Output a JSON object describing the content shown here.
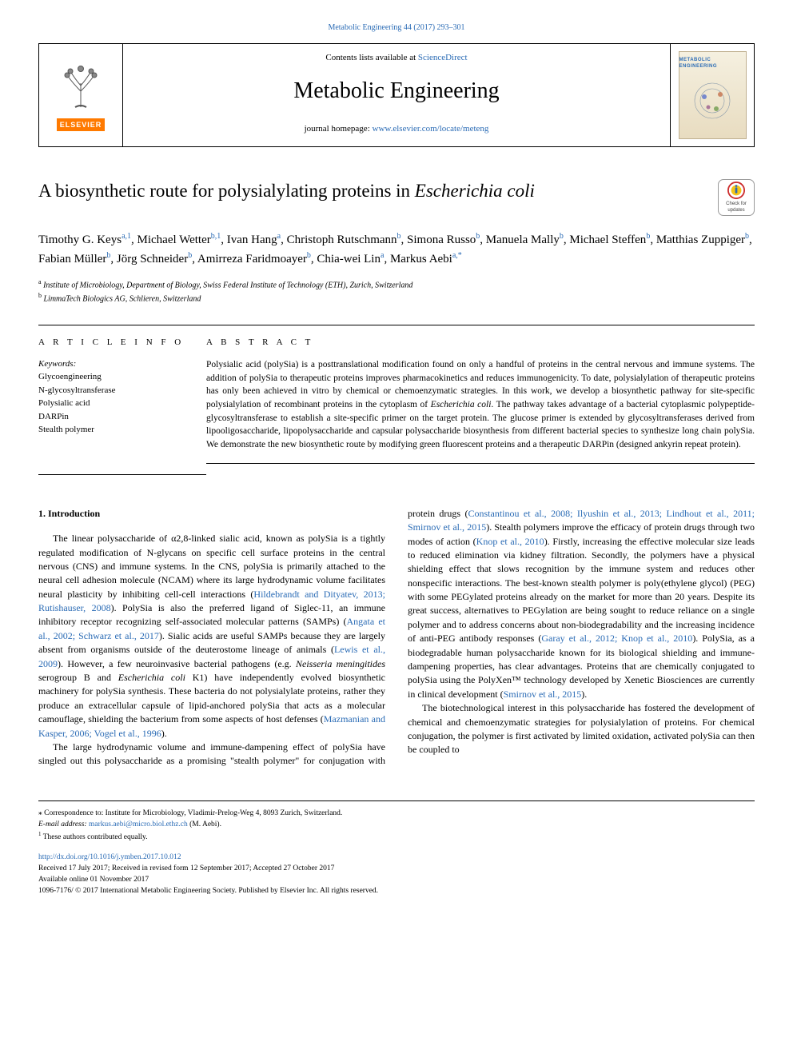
{
  "top_citation": "Metabolic Engineering 44 (2017) 293–301",
  "header": {
    "contents_prefix": "Contents lists available at ",
    "contents_link": "ScienceDirect",
    "journal_name": "Metabolic Engineering",
    "homepage_label": "journal homepage: ",
    "homepage_url": "www.elsevier.com/locate/meteng",
    "elsevier_label": "ELSEVIER",
    "cover_label": "METABOLIC ENGINEERING"
  },
  "colors": {
    "link": "#2a6bb5",
    "text": "#000000",
    "crossmark_red": "#cc2b2b",
    "crossmark_yellow": "#f5c518",
    "crossmark_blue": "#2a6bb5",
    "elsevier_orange": "#ff7a00",
    "cover_bg_top": "#f5f0e0",
    "cover_bg_bot": "#e8dcc0"
  },
  "crossmark": {
    "line1": "Check for",
    "line2": "updates"
  },
  "article": {
    "title_pre": "A biosynthetic route for polysialylating proteins in ",
    "title_italic": "Escherichia coli",
    "authors_html": "Timothy G. Keys|a,1|, Michael Wetter|b,1|, Ivan Hang|a|, Christoph Rutschmann|b|, Simona Russo|b|, Manuela Mally|b|, Michael Steffen|b|, Matthias Zuppiger|b|, Fabian Müller|b|, Jörg Schneider|b|, Amirreza Faridmoayer|b|, Chia-wei Lin|a|, Markus Aebi|a,*|",
    "affiliations": [
      {
        "sup": "a",
        "text": "Institute of Microbiology, Department of Biology, Swiss Federal Institute of Technology (ETH), Zurich, Switzerland"
      },
      {
        "sup": "b",
        "text": "LimmaTech Biologics AG, Schlieren, Switzerland"
      }
    ]
  },
  "info": {
    "article_info_head": "A R T I C L E  I N F O",
    "abstract_head": "A B S T R A C T",
    "keywords_label": "Keywords:",
    "keywords": [
      "Glycoengineering",
      "N-glycosyltransferase",
      "Polysialic acid",
      "DARPin",
      "Stealth polymer"
    ]
  },
  "abstract": "Polysialic acid (polySia) is a posttranslational modification found on only a handful of proteins in the central nervous and immune systems. The addition of polySia to therapeutic proteins improves pharmacokinetics and reduces immunogenicity. To date, polysialylation of therapeutic proteins has only been achieved in vitro by chemical or chemoenzymatic strategies. In this work, we develop a biosynthetic pathway for site-specific polysialylation of recombinant proteins in the cytoplasm of |Escherichia coli|. The pathway takes advantage of a bacterial cytoplasmic polypeptide-glycosyltransferase to establish a site-specific primer on the target protein. The glucose primer is extended by glycosyltransferases derived from lipooligosaccharide, lipopolysaccharide and capsular polysaccharide biosynthesis from different bacterial species to synthesize long chain polySia. We demonstrate the new biosynthetic route by modifying green fluorescent proteins and a therapeutic DARPin (designed ankyrin repeat protein).",
  "body": {
    "heading": "1. Introduction",
    "p1": "The linear polysaccharide of α2,8-linked sialic acid, known as polySia is a tightly regulated modification of N-glycans on specific cell surface proteins in the central nervous (CNS) and immune systems. In the CNS, polySia is primarily attached to the neural cell adhesion molecule (NCAM) where its large hydrodynamic volume facilitates neural plasticity by inhibiting cell-cell interactions (|Hildebrandt and Dityatev, 2013; Rutishauser, 2008|). PolySia is also the preferred ligand of Siglec-11, an immune inhibitory receptor recognizing self-associated molecular patterns (SAMPs) (|Angata et al., 2002; Schwarz et al., 2017|). Sialic acids are useful SAMPs because they are largely absent from organisms outside of the deuterostome lineage of animals (|Lewis et al., 2009|). However, a few neuroinvasive bacterial pathogens (e.g. ||Neisseria meningitides|| serogroup B and ||Escherichia coli|| K1) have independently evolved biosynthetic machinery for polySia synthesis. These bacteria do not polysialylate proteins, rather they produce an extracellular capsule of lipid-anchored polySia that acts as a molecular camouflage, shielding the bacterium from some aspects of host defenses (|Mazmanian and Kasper, 2006; Vogel et al., 1996|).",
    "p2": "The large hydrodynamic volume and immune-dampening effect of polySia have singled out this polysaccharide as a promising \"stealth polymer\" for conjugation with protein drugs (|Constantinou et al., 2008; Ilyushin et al., 2013; Lindhout et al., 2011; Smirnov et al., 2015|). Stealth polymers improve the efficacy of protein drugs through two modes of action (|Knop et al., 2010|). Firstly, increasing the effective molecular size leads to reduced elimination via kidney filtration. Secondly, the polymers have a physical shielding effect that slows recognition by the immune system and reduces other nonspecific interactions. The best-known stealth polymer is poly(ethylene glycol) (PEG) with some PEGylated proteins already on the market for more than 20 years. Despite its great success, alternatives to PEGylation are being sought to reduce reliance on a single polymer and to address concerns about non-biodegradability and the increasing incidence of anti-PEG antibody responses (|Garay et al., 2012; Knop et al., 2010|). PolySia, as a biodegradable human polysaccharide known for its biological shielding and immune-dampening properties, has clear advantages. Proteins that are chemically conjugated to polySia using the PolyXen™ technology developed by Xenetic Biosciences are currently in clinical development (|Smirnov et al., 2015|).",
    "p3": "The biotechnological interest in this polysaccharide has fostered the development of chemical and chemoenzymatic strategies for polysialylation of proteins. For chemical conjugation, the polymer is first activated by limited oxidation, activated polySia can then be coupled to"
  },
  "footer": {
    "corr_label": "⁎ Correspondence to: Institute for Microbiology, Vladimir-Prelog-Weg 4, 8093 Zurich, Switzerland.",
    "email_label": "E-mail address: ",
    "email": "markus.aebi@micro.biol.ethz.ch",
    "email_suffix": " (M. Aebi).",
    "equal": "These authors contributed equally.",
    "doi": "http://dx.doi.org/10.1016/j.ymben.2017.10.012",
    "dates": "Received 17 July 2017; Received in revised form 12 September 2017; Accepted 27 October 2017",
    "online": "Available online 01 November 2017",
    "copyright": "1096-7176/ © 2017 International Metabolic Engineering Society. Published by Elsevier Inc. All rights reserved."
  }
}
